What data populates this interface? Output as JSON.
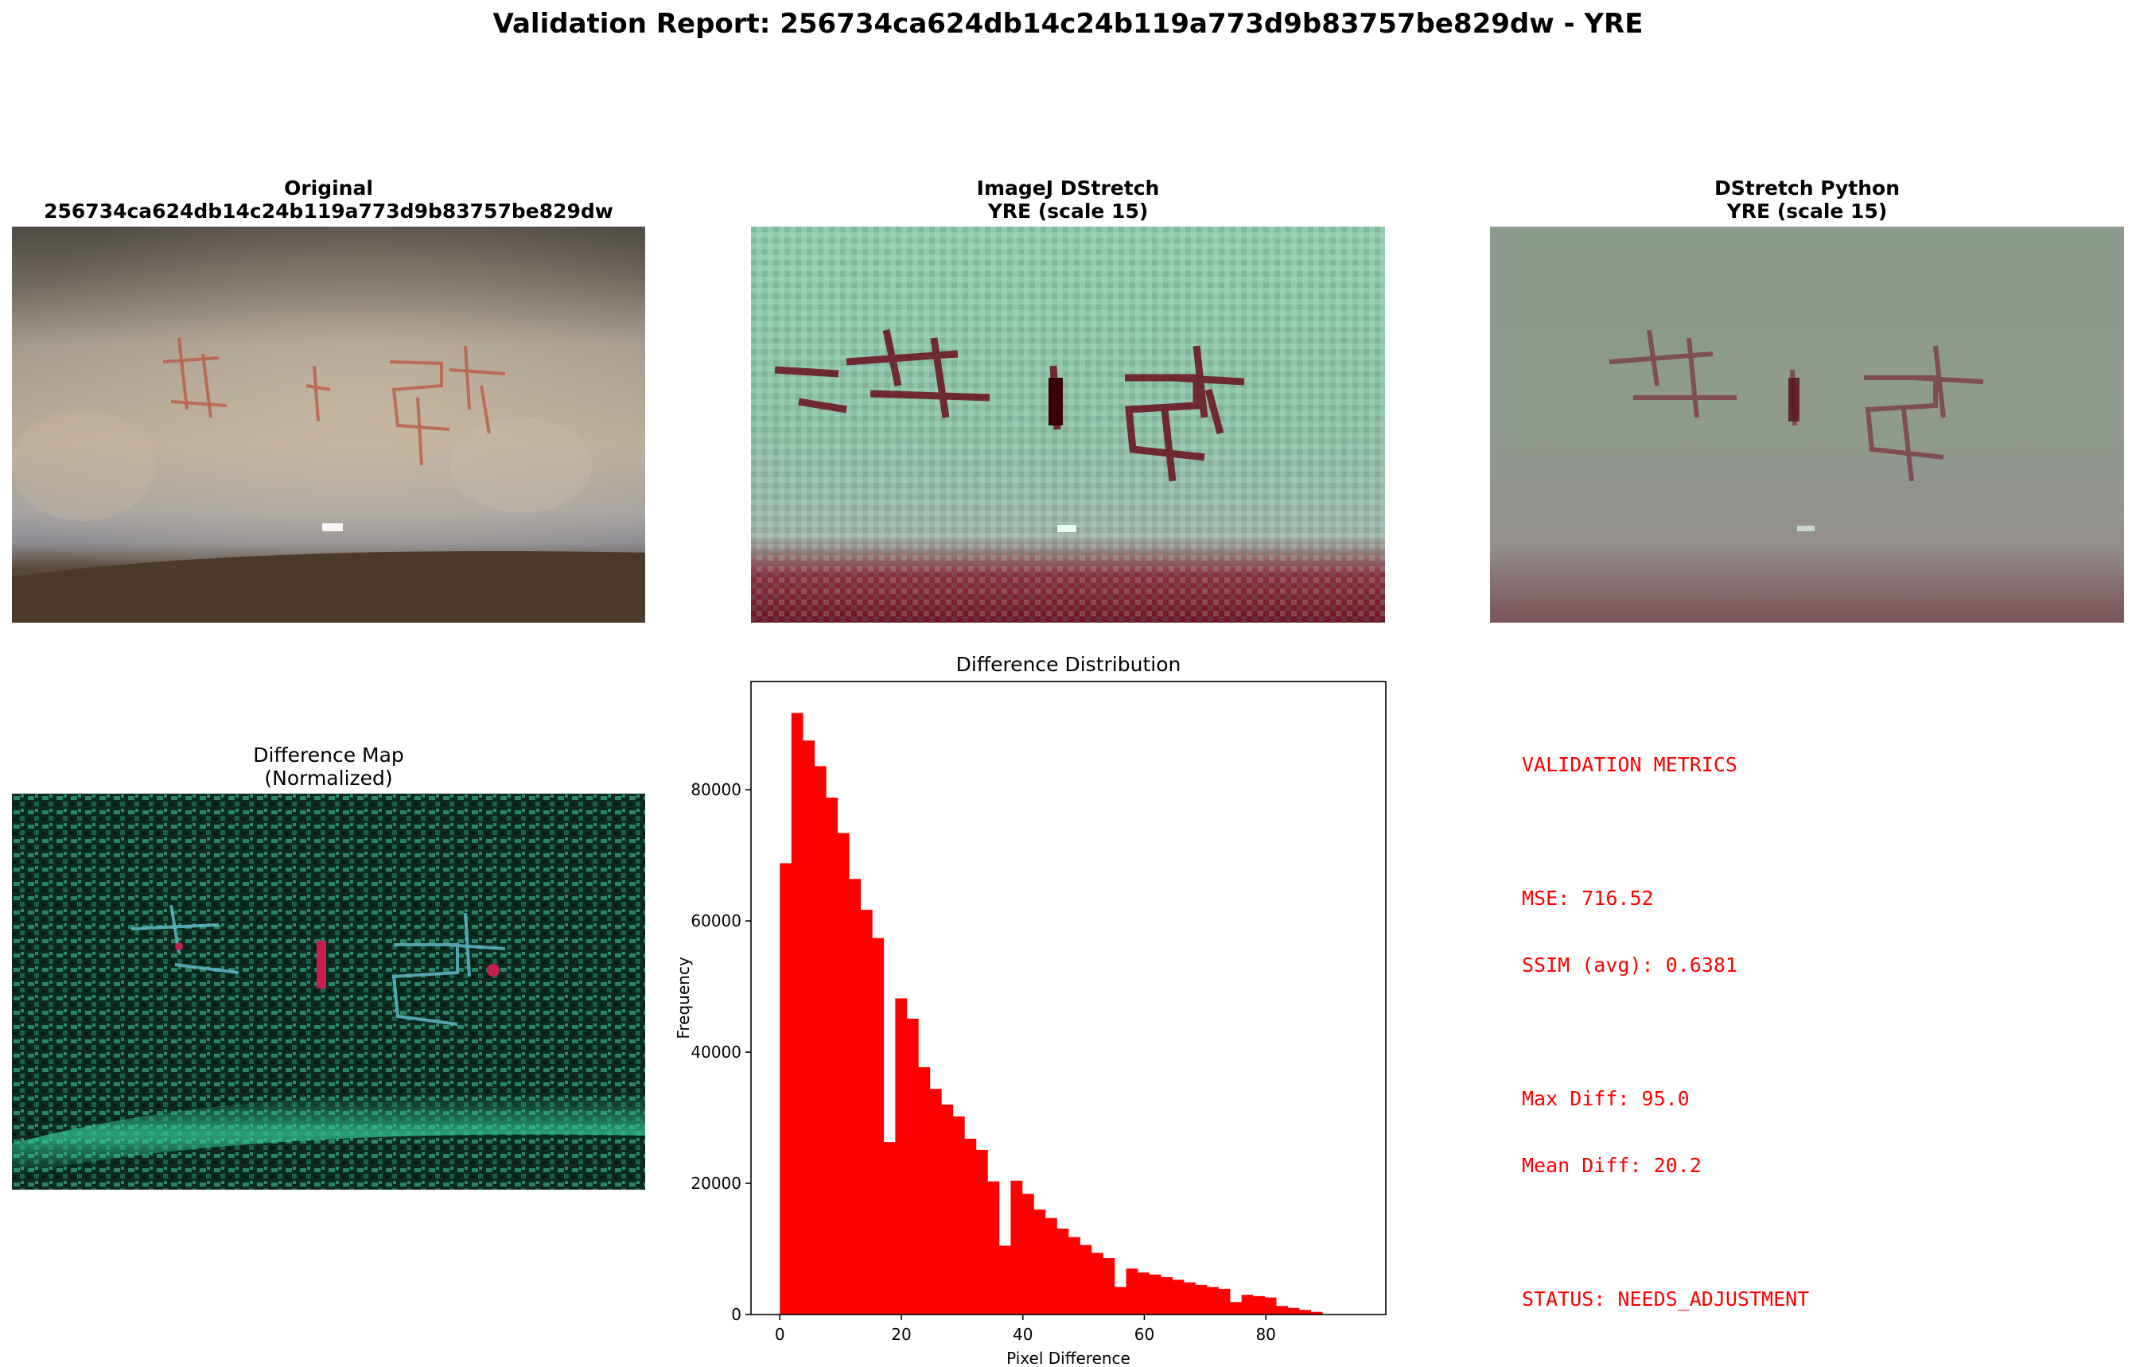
{
  "report_title": "Validation Report: 256734ca624db14c24b119a773d9b83757be829dw - YRE",
  "panels": {
    "original": {
      "title_line1": "Original",
      "title_line2": "256734ca624db14c24b119a773d9b83757be829dw"
    },
    "imagej": {
      "title_line1": "ImageJ DStretch",
      "title_line2": "YRE (scale 15)"
    },
    "python": {
      "title_line1": "DStretch Python",
      "title_line2": "YRE (scale 15)"
    },
    "diffmap": {
      "title_line1": "Difference Map",
      "title_line2": "(Normalized)"
    }
  },
  "metrics": {
    "heading": "VALIDATION METRICS",
    "mse": "MSE: 716.52",
    "ssim": "SSIM (avg): 0.6381",
    "max_diff": "Max Diff: 95.0",
    "mean_diff": "Mean Diff: 20.2",
    "status": "STATUS: NEEDS_ADJUSTMENT",
    "color": "#ff0000"
  },
  "chart_data": {
    "type": "bar",
    "title": "Difference Distribution",
    "xlabel": "Pixel Difference",
    "ylabel": "Frequency",
    "bar_color": "#ff0000",
    "xlim": [
      -4.75,
      99.75
    ],
    "ylim": [
      0,
      96500
    ],
    "xticks": [
      0,
      20,
      40,
      60,
      80
    ],
    "yticks": [
      0,
      20000,
      40000,
      60000,
      80000
    ],
    "bin_width": 1.9,
    "bin_starts": [
      0,
      1.9,
      3.8,
      5.7,
      7.6,
      9.5,
      11.4,
      13.3,
      15.2,
      17.1,
      19.0,
      20.9,
      22.8,
      24.7,
      26.6,
      28.5,
      30.4,
      32.3,
      34.2,
      36.1,
      38.0,
      39.9,
      41.8,
      43.7,
      45.6,
      47.5,
      49.4,
      51.3,
      53.2,
      55.1,
      57.0,
      58.9,
      60.8,
      62.7,
      64.6,
      66.5,
      68.4,
      70.3,
      72.2,
      74.1,
      76.0,
      77.9,
      79.8,
      81.7,
      83.6,
      85.5,
      87.4,
      89.3,
      91.2,
      93.1
    ],
    "values": [
      68800,
      91700,
      87500,
      83600,
      78800,
      73400,
      66400,
      61700,
      57400,
      26300,
      48200,
      45100,
      37700,
      34400,
      32000,
      30200,
      26800,
      25100,
      20300,
      10500,
      20400,
      18400,
      16000,
      14700,
      13100,
      11800,
      10600,
      9400,
      8600,
      4200,
      7000,
      6400,
      6100,
      5700,
      5300,
      4900,
      4500,
      4200,
      3900,
      1900,
      3000,
      2800,
      2600,
      1300,
      1000,
      700,
      400,
      0,
      0,
      0
    ]
  }
}
